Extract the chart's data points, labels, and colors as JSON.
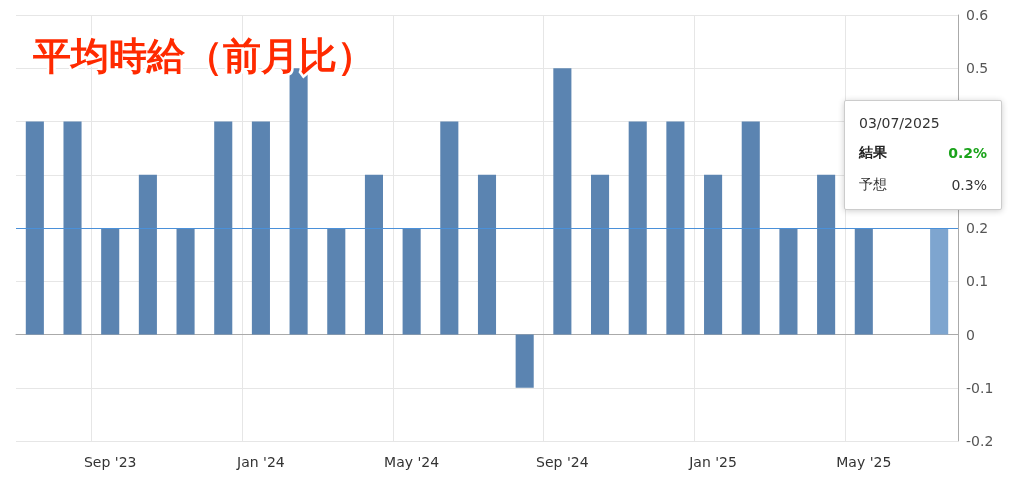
{
  "chart_data": {
    "type": "bar",
    "title": "平均時給（前月比）",
    "categories": [
      null,
      null,
      "Sep '23",
      null,
      null,
      null,
      "Jan '24",
      null,
      null,
      null,
      "May '24",
      null,
      null,
      null,
      "Sep '24",
      null,
      null,
      null,
      "Jan '25",
      null,
      null,
      null,
      "May '25",
      null,
      null
    ],
    "values": [
      0.4,
      0.4,
      0.2,
      0.3,
      0.2,
      0.4,
      0.4,
      0.5,
      0.2,
      0.3,
      0.2,
      0.4,
      0.3,
      -0.1,
      0.5,
      0.3,
      0.4,
      0.4,
      0.3,
      0.4,
      0.2,
      0.3,
      0.2,
      null,
      0.2
    ],
    "colors": [
      "#5b84b1",
      "#5b84b1",
      "#5b84b1",
      "#5b84b1",
      "#5b84b1",
      "#5b84b1",
      "#5b84b1",
      "#5b84b1",
      "#5b84b1",
      "#5b84b1",
      "#5b84b1",
      "#5b84b1",
      "#5b84b1",
      "#5b84b1",
      "#5b84b1",
      "#5b84b1",
      "#5b84b1",
      "#5b84b1",
      "#5b84b1",
      "#5b84b1",
      "#5b84b1",
      "#5b84b1",
      "#5b84b1",
      "#5b84b1",
      "#7ea5cf"
    ],
    "ylim": [
      -0.2,
      0.6
    ],
    "yticks": [
      -0.2,
      -0.1,
      0,
      0.1,
      0.2,
      {
        "value": 0.3,
        "label": null
      },
      {
        "value": 0.4,
        "label": null
      },
      0.5,
      0.6
    ],
    "ref_lines": [
      {
        "axis": "y",
        "value": 0.2,
        "color": "#4a90d9"
      }
    ],
    "annotations": [
      "03/07/2025",
      "結果",
      "0.2%",
      "予想",
      "0.3%"
    ],
    "grid": true
  }
}
